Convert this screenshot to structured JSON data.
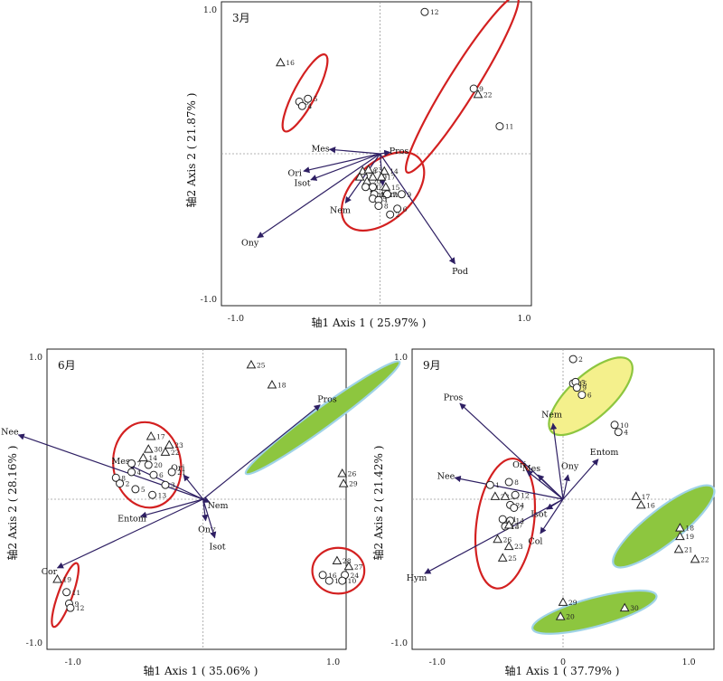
{
  "chart_data": [
    {
      "type": "scatter",
      "panel": "3月",
      "xlabel": "轴1 Axis 1 ( 25.97% )",
      "ylabel": "轴2 Axis 2 ( 21.87% )",
      "xlim": [
        -1.1,
        1.05
      ],
      "ylim": [
        -1.05,
        1.05
      ],
      "x_tick_labels": [
        "-1.0",
        "1.0"
      ],
      "y_tick_labels": [
        "-1.0",
        "1.0"
      ],
      "x_ticks": [
        -1.0,
        1.0
      ],
      "y_ticks": [
        -1.0,
        1.0
      ],
      "points": [
        {
          "label": "12",
          "shape": "circle",
          "x": 0.31,
          "y": 0.98
        },
        {
          "label": "9",
          "shape": "circle",
          "x": 0.65,
          "y": 0.45
        },
        {
          "label": "22",
          "shape": "triangle",
          "x": 0.68,
          "y": 0.41
        },
        {
          "label": "11",
          "shape": "circle",
          "x": 0.83,
          "y": 0.19
        },
        {
          "label": "16",
          "shape": "triangle",
          "x": -0.69,
          "y": 0.63
        },
        {
          "label": "3",
          "shape": "circle",
          "x": -0.56,
          "y": 0.36
        },
        {
          "label": "5",
          "shape": "circle",
          "x": -0.5,
          "y": 0.38
        },
        {
          "label": "4",
          "shape": "circle",
          "x": -0.54,
          "y": 0.33
        },
        {
          "label": "18",
          "shape": "triangle",
          "x": -0.12,
          "y": -0.12
        },
        {
          "label": "23",
          "shape": "triangle",
          "x": -0.08,
          "y": -0.11
        },
        {
          "label": "13",
          "shape": "triangle",
          "x": -0.14,
          "y": -0.16
        },
        {
          "label": "20",
          "shape": "triangle",
          "x": -0.09,
          "y": -0.19
        },
        {
          "label": "19",
          "shape": "triangle",
          "x": -0.05,
          "y": -0.16
        },
        {
          "label": "14",
          "shape": "triangle",
          "x": 0.03,
          "y": -0.12
        },
        {
          "label": "17",
          "shape": "triangle",
          "x": 0.01,
          "y": -0.16
        },
        {
          "label": "21",
          "shape": "circle",
          "x": -0.1,
          "y": -0.23
        },
        {
          "label": "24",
          "shape": "circle",
          "x": -0.05,
          "y": -0.23
        },
        {
          "label": "10",
          "shape": "circle",
          "x": -0.04,
          "y": -0.28
        },
        {
          "label": "15",
          "shape": "triangle",
          "x": 0.04,
          "y": -0.23
        },
        {
          "label": "7",
          "shape": "circle",
          "x": 0.05,
          "y": -0.28
        },
        {
          "label": "25",
          "shape": "circle",
          "x": -0.05,
          "y": -0.31
        },
        {
          "label": "1",
          "shape": "circle",
          "x": -0.01,
          "y": -0.32
        },
        {
          "label": "9",
          "shape": "circle",
          "x": 0.15,
          "y": -0.28
        },
        {
          "label": "8",
          "shape": "circle",
          "x": -0.01,
          "y": -0.36
        },
        {
          "label": "6",
          "shape": "circle",
          "x": 0.12,
          "y": -0.38
        },
        {
          "label": "2",
          "shape": "circle",
          "x": 0.07,
          "y": -0.42
        }
      ],
      "vectors": [
        {
          "label": "Mes",
          "x": -0.35,
          "y": 0.03
        },
        {
          "label": "Pros",
          "x": 0.07,
          "y": 0.01
        },
        {
          "label": "Ori",
          "x": -0.53,
          "y": -0.12
        },
        {
          "label": "Isot",
          "x": -0.48,
          "y": -0.18
        },
        {
          "label": "Entom",
          "x": 0.02,
          "y": -0.22
        },
        {
          "label": "Nem",
          "x": -0.24,
          "y": -0.34
        },
        {
          "label": "Ony",
          "x": -0.85,
          "y": -0.58
        },
        {
          "label": "Pod",
          "x": 0.52,
          "y": -0.76
        }
      ],
      "ellipses": [
        {
          "cx": 0.57,
          "cy": 0.48,
          "rx": 0.72,
          "ry": 0.1,
          "angle": -58,
          "fill": "none",
          "stroke": "#d32020"
        },
        {
          "cx": -0.52,
          "cy": 0.42,
          "rx": 0.3,
          "ry": 0.075,
          "angle": -62,
          "fill": "none",
          "stroke": "#d32020"
        },
        {
          "cx": 0.02,
          "cy": -0.26,
          "rx": 0.34,
          "ry": 0.2,
          "angle": -42,
          "fill": "none",
          "stroke": "#d32020"
        }
      ]
    },
    {
      "type": "scatter",
      "panel": "6月",
      "xlabel": "轴1 Axis 1 ( 35.06% )",
      "ylabel": "轴2 Axis 2 ( 28.16% )",
      "xlim": [
        -1.2,
        1.1
      ],
      "ylim": [
        -1.05,
        1.05
      ],
      "x_tick_labels": [
        "-1.0",
        "1.0"
      ],
      "y_tick_labels": [
        "-1.0",
        "1.0"
      ],
      "x_ticks": [
        -1.0,
        1.0
      ],
      "y_ticks": [
        -1.0,
        1.0
      ],
      "points": [
        {
          "label": "25",
          "shape": "triangle",
          "x": 0.37,
          "y": 0.94
        },
        {
          "label": "18",
          "shape": "triangle",
          "x": 0.53,
          "y": 0.8
        },
        {
          "label": "26",
          "shape": "triangle",
          "x": 1.07,
          "y": 0.18
        },
        {
          "label": "29",
          "shape": "triangle",
          "x": 1.08,
          "y": 0.11
        },
        {
          "label": "17",
          "shape": "triangle",
          "x": -0.4,
          "y": 0.44
        },
        {
          "label": "23",
          "shape": "triangle",
          "x": -0.26,
          "y": 0.38
        },
        {
          "label": "30",
          "shape": "triangle",
          "x": -0.42,
          "y": 0.35
        },
        {
          "label": "22",
          "shape": "triangle",
          "x": -0.29,
          "y": 0.33
        },
        {
          "label": "14",
          "shape": "triangle",
          "x": -0.46,
          "y": 0.29
        },
        {
          "label": "Mes",
          "shape": "none",
          "x": -0.76,
          "y": 0.35
        },
        {
          "label": "7",
          "shape": "circle",
          "x": -0.55,
          "y": 0.25
        },
        {
          "label": "20",
          "shape": "circle",
          "x": -0.42,
          "y": 0.24
        },
        {
          "label": "Ori",
          "shape": "none",
          "x": -0.19,
          "y": 0.25
        },
        {
          "label": "4",
          "shape": "circle",
          "x": -0.55,
          "y": 0.19
        },
        {
          "label": "21",
          "shape": "circle",
          "x": -0.24,
          "y": 0.19
        },
        {
          "label": "8",
          "shape": "circle",
          "x": -0.67,
          "y": 0.15
        },
        {
          "label": "6",
          "shape": "circle",
          "x": -0.38,
          "y": 0.17
        },
        {
          "label": "2",
          "shape": "circle",
          "x": -0.64,
          "y": 0.11
        },
        {
          "label": "3",
          "shape": "circle",
          "x": -0.29,
          "y": 0.1
        },
        {
          "label": "5",
          "shape": "circle",
          "x": -0.52,
          "y": 0.07
        },
        {
          "label": "13",
          "shape": "circle",
          "x": -0.39,
          "y": 0.03
        },
        {
          "label": "28",
          "shape": "triangle",
          "x": 1.03,
          "y": -0.43
        },
        {
          "label": "27",
          "shape": "triangle",
          "x": 1.12,
          "y": -0.47
        },
        {
          "label": "24",
          "shape": "circle",
          "x": 1.09,
          "y": -0.53
        },
        {
          "label": "16",
          "shape": "circle",
          "x": 0.92,
          "y": -0.53
        },
        {
          "label": "15",
          "shape": "circle",
          "x": 0.97,
          "y": -0.57
        },
        {
          "label": "10",
          "shape": "circle",
          "x": 1.07,
          "y": -0.57
        },
        {
          "label": "19",
          "shape": "triangle",
          "x": -1.12,
          "y": -0.56
        },
        {
          "label": "11",
          "shape": "circle",
          "x": -1.05,
          "y": -0.65
        },
        {
          "label": "9",
          "shape": "circle",
          "x": -1.03,
          "y": -0.73
        },
        {
          "label": "12",
          "shape": "circle",
          "x": -1.02,
          "y": -0.76
        }
      ],
      "vectors": [
        {
          "label": "Pros",
          "x": 0.9,
          "y": 0.66
        },
        {
          "label": "Nee",
          "x": -1.42,
          "y": 0.45
        },
        {
          "label": "Mes",
          "x": -0.57,
          "y": 0.24
        },
        {
          "label": "Ori",
          "x": -0.15,
          "y": 0.17
        },
        {
          "label": "Nem",
          "x": 0.05,
          "y": -0.02
        },
        {
          "label": "Ony",
          "x": 0.02,
          "y": -0.15
        },
        {
          "label": "Entom",
          "x": -0.48,
          "y": -0.12
        },
        {
          "label": "Isot",
          "x": 0.09,
          "y": -0.27
        },
        {
          "label": "Cor",
          "x": -1.12,
          "y": -0.48
        }
      ],
      "ellipses": [
        {
          "cx": 0.92,
          "cy": 0.57,
          "rx": 0.73,
          "ry": 0.07,
          "angle": -36,
          "fill": "#8dc63f",
          "stroke": "#9fd3e7"
        },
        {
          "cx": -0.43,
          "cy": 0.24,
          "rx": 0.26,
          "ry": 0.3,
          "angle": -8,
          "fill": "none",
          "stroke": "#d32020"
        },
        {
          "cx": 1.04,
          "cy": -0.5,
          "rx": 0.2,
          "ry": 0.16,
          "angle": 0,
          "fill": "none",
          "stroke": "#d32020"
        },
        {
          "cx": -1.06,
          "cy": -0.67,
          "rx": 0.26,
          "ry": 0.05,
          "angle": -70,
          "fill": "none",
          "stroke": "#d32020"
        }
      ]
    },
    {
      "type": "scatter",
      "panel": "9月",
      "xlabel": "轴1 Axis 1 ( 37.79% )",
      "ylabel": "轴2 Axis 2 ( 21.42% )",
      "xlim": [
        -1.2,
        1.2
      ],
      "ylim": [
        -1.05,
        1.05
      ],
      "x_tick_labels": [
        "-1.0",
        "0",
        "1.0"
      ],
      "y_tick_labels": [
        "-1.0",
        "1.0"
      ],
      "x_ticks": [
        -1.0,
        0,
        1.0
      ],
      "y_ticks": [
        -1.0,
        1.0
      ],
      "points": [
        {
          "label": "2",
          "shape": "circle",
          "x": 0.08,
          "y": 0.98
        },
        {
          "label": "15",
          "shape": "circle",
          "x": 0.08,
          "y": 0.81
        },
        {
          "label": "5",
          "shape": "circle",
          "x": 0.1,
          "y": 0.82
        },
        {
          "label": "9",
          "shape": "circle",
          "x": 0.11,
          "y": 0.78
        },
        {
          "label": "6",
          "shape": "circle",
          "x": 0.15,
          "y": 0.73
        },
        {
          "label": "10",
          "shape": "circle",
          "x": 0.41,
          "y": 0.52
        },
        {
          "label": "4",
          "shape": "circle",
          "x": 0.44,
          "y": 0.47
        },
        {
          "label": "1",
          "shape": "circle",
          "x": -0.58,
          "y": 0.1
        },
        {
          "label": "8",
          "shape": "circle",
          "x": -0.43,
          "y": 0.12
        },
        {
          "label": "28",
          "shape": "triangle",
          "x": -0.54,
          "y": 0.02
        },
        {
          "label": "3",
          "shape": "triangle",
          "x": -0.46,
          "y": 0.02
        },
        {
          "label": "12",
          "shape": "circle",
          "x": -0.38,
          "y": 0.03
        },
        {
          "label": "24",
          "shape": "circle",
          "x": -0.42,
          "y": -0.04
        },
        {
          "label": "7",
          "shape": "circle",
          "x": -0.39,
          "y": -0.06
        },
        {
          "label": "11",
          "shape": "circle",
          "x": -0.48,
          "y": -0.14
        },
        {
          "label": "14",
          "shape": "circle",
          "x": -0.42,
          "y": -0.15
        },
        {
          "label": "13",
          "shape": "circle",
          "x": -0.46,
          "y": -0.19
        },
        {
          "label": "27",
          "shape": "triangle",
          "x": -0.43,
          "y": -0.18
        },
        {
          "label": "26",
          "shape": "triangle",
          "x": -0.52,
          "y": -0.28
        },
        {
          "label": "23",
          "shape": "triangle",
          "x": -0.43,
          "y": -0.33
        },
        {
          "label": "25",
          "shape": "triangle",
          "x": -0.48,
          "y": -0.41
        },
        {
          "label": "17",
          "shape": "triangle",
          "x": 0.58,
          "y": 0.02
        },
        {
          "label": "16",
          "shape": "triangle",
          "x": 0.62,
          "y": -0.04
        },
        {
          "label": "18",
          "shape": "triangle",
          "x": 0.93,
          "y": -0.2
        },
        {
          "label": "19",
          "shape": "triangle",
          "x": 0.93,
          "y": -0.26
        },
        {
          "label": "21",
          "shape": "triangle",
          "x": 0.92,
          "y": -0.35
        },
        {
          "label": "22",
          "shape": "triangle",
          "x": 1.05,
          "y": -0.42
        },
        {
          "label": "29",
          "shape": "triangle",
          "x": 0.0,
          "y": -0.72
        },
        {
          "label": "20",
          "shape": "triangle",
          "x": -0.02,
          "y": -0.82
        },
        {
          "label": "30",
          "shape": "triangle",
          "x": 0.49,
          "y": -0.76
        }
      ],
      "vectors": [
        {
          "label": "Pros",
          "x": -0.82,
          "y": 0.67
        },
        {
          "label": "Nem",
          "x": -0.08,
          "y": 0.53
        },
        {
          "label": "Entom",
          "x": 0.28,
          "y": 0.28
        },
        {
          "label": "Ony",
          "x": 0.04,
          "y": 0.17
        },
        {
          "label": "Ori",
          "x": -0.29,
          "y": 0.2
        },
        {
          "label": "Mes",
          "x": -0.2,
          "y": 0.17
        },
        {
          "label": "Nee",
          "x": -0.86,
          "y": 0.15
        },
        {
          "label": "Isot",
          "x": -0.13,
          "y": -0.07
        },
        {
          "label": "Col",
          "x": -0.18,
          "y": -0.24
        },
        {
          "label": "Hym",
          "x": -1.1,
          "y": -0.52
        }
      ],
      "ellipses": [
        {
          "cx": 0.22,
          "cy": 0.72,
          "rx": 0.42,
          "ry": 0.15,
          "angle": -42,
          "fill": "#f4f08c",
          "stroke": "#8dc63f"
        },
        {
          "cx": -0.46,
          "cy": -0.17,
          "rx": 0.52,
          "ry": 0.2,
          "angle": -82,
          "fill": "none",
          "stroke": "#d32020"
        },
        {
          "cx": 0.8,
          "cy": -0.19,
          "rx": 0.5,
          "ry": 0.12,
          "angle": -38,
          "fill": "#8dc63f",
          "stroke": "#9fd3e7"
        },
        {
          "cx": 0.25,
          "cy": -0.79,
          "rx": 0.51,
          "ry": 0.1,
          "angle": -15,
          "fill": "#8dc63f",
          "stroke": "#9fd3e7"
        }
      ]
    }
  ]
}
